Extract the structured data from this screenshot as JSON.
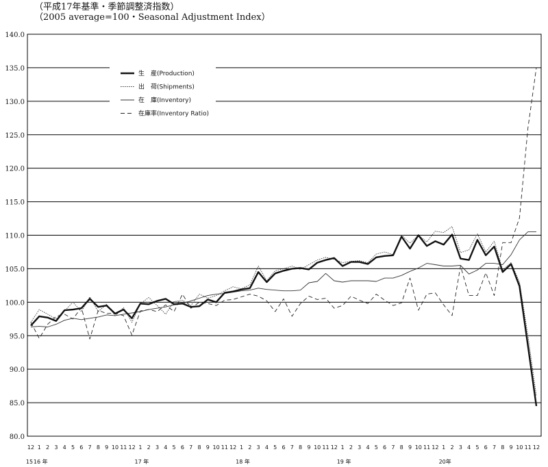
{
  "header": {
    "title_jp": "（平成17年基準・季節調整済指数）",
    "title_en": "（2005 average=100・Seasonal Adjustment Index）"
  },
  "chart_data": {
    "type": "line",
    "title": "（平成17年基準・季節調整済指数）",
    "subtitle": "（2005 average=100・Seasonal Adjustment Index）",
    "xlabel": "",
    "ylabel": "",
    "ylim": [
      80,
      140
    ],
    "y_ticks": [
      "80.0",
      "85.0",
      "90.0",
      "95.0",
      "100.0",
      "105.0",
      "110.0",
      "115.0",
      "120.0",
      "125.0",
      "130.0",
      "135.0",
      "140.0"
    ],
    "grid": true,
    "legend_position": "top-left",
    "x_month_labels": [
      "12",
      "1",
      "2",
      "3",
      "4",
      "5",
      "6",
      "7",
      "8",
      "9",
      "10",
      "11",
      "12",
      "1",
      "2",
      "3",
      "4",
      "5",
      "6",
      "7",
      "8",
      "9",
      "10",
      "11",
      "12",
      "1",
      "2",
      "3",
      "4",
      "5",
      "6",
      "7",
      "8",
      "9",
      "10",
      "11",
      "12",
      "1",
      "2",
      "3",
      "4",
      "5",
      "6",
      "7",
      "8",
      "9",
      "10",
      "11",
      "12",
      "1",
      "2",
      "3",
      "4",
      "5",
      "6",
      "7",
      "8",
      "9",
      "10",
      "11",
      "12"
    ],
    "x_year_labels": [
      {
        "index": 0,
        "text": "15"
      },
      {
        "index": 1,
        "text": "16 年"
      },
      {
        "index": 13,
        "text": "17 年"
      },
      {
        "index": 25,
        "text": "18 年"
      },
      {
        "index": 37,
        "text": "19 年"
      },
      {
        "index": 49,
        "text": "20年"
      }
    ],
    "series": [
      {
        "name": "生　産(Production)",
        "style": "solid-thick",
        "values": [
          96.5,
          97.9,
          97.7,
          97.2,
          98.8,
          98.9,
          99.1,
          100.5,
          99.3,
          99.5,
          98.3,
          98.9,
          97.6,
          99.8,
          99.7,
          100.2,
          100.5,
          99.7,
          99.8,
          99.3,
          99.4,
          100.4,
          100.0,
          101.4,
          101.6,
          101.9,
          102.1,
          104.5,
          103.0,
          104.3,
          104.7,
          105.0,
          105.1,
          104.9,
          105.9,
          106.3,
          106.6,
          105.4,
          106.0,
          106.0,
          105.7,
          106.7,
          106.9,
          107.0,
          109.8,
          108.0,
          110.0,
          108.4,
          109.1,
          108.6,
          110.1,
          106.5,
          106.3,
          109.3,
          107.0,
          108.3,
          104.5,
          105.7,
          102.4,
          93.5,
          84.5
        ]
      },
      {
        "name": "出　荷(Shipments)",
        "style": "dotted",
        "values": [
          97.0,
          98.9,
          98.2,
          97.5,
          98.7,
          100.0,
          98.6,
          100.8,
          98.6,
          99.7,
          98.0,
          99.2,
          97.0,
          99.8,
          100.7,
          99.5,
          98.2,
          100.1,
          100.3,
          99.5,
          101.2,
          100.6,
          101.0,
          101.7,
          102.3,
          102.0,
          102.6,
          105.4,
          103.2,
          104.7,
          105.0,
          105.4,
          104.9,
          105.6,
          106.3,
          106.7,
          106.4,
          105.9,
          106.1,
          106.2,
          105.9,
          107.2,
          107.5,
          107.1,
          110.0,
          108.8,
          110.0,
          109.0,
          110.6,
          110.4,
          111.3,
          107.4,
          107.8,
          110.2,
          107.5,
          109.1,
          104.8,
          105.9,
          103.0,
          95.0,
          86.0
        ]
      },
      {
        "name": "在　庫(Inventory)",
        "style": "solid-thin",
        "values": [
          96.3,
          96.4,
          96.3,
          96.7,
          97.3,
          97.6,
          97.4,
          97.6,
          97.8,
          98.1,
          98.0,
          98.2,
          98.4,
          98.6,
          98.9,
          99.1,
          99.3,
          99.6,
          99.8,
          100.2,
          100.6,
          101.0,
          101.2,
          101.3,
          101.5,
          101.7,
          101.8,
          102.1,
          101.9,
          101.8,
          101.7,
          101.7,
          101.8,
          102.9,
          103.1,
          104.3,
          103.2,
          103.0,
          103.2,
          103.2,
          103.2,
          103.1,
          103.6,
          103.6,
          104.0,
          104.6,
          105.1,
          105.8,
          105.6,
          105.4,
          105.4,
          105.5,
          104.2,
          104.8,
          105.8,
          105.8,
          105.6,
          107.1,
          109.3,
          110.5,
          110.5
        ]
      },
      {
        "name": "在庫率(Inventory Ratio)",
        "style": "dashed",
        "values": [
          97.0,
          94.6,
          96.7,
          97.9,
          98.2,
          97.5,
          99.2,
          94.5,
          98.8,
          98.3,
          98.4,
          98.0,
          95.1,
          98.7,
          98.9,
          98.6,
          99.6,
          98.6,
          101.2,
          99.1,
          100.0,
          99.8,
          99.5,
          100.3,
          100.4,
          100.8,
          101.2,
          100.9,
          100.2,
          98.6,
          100.5,
          97.9,
          99.8,
          100.9,
          100.4,
          100.6,
          99.1,
          99.5,
          100.9,
          100.3,
          99.8,
          101.2,
          100.3,
          99.5,
          99.9,
          103.6,
          98.8,
          101.2,
          101.4,
          99.6,
          98.0,
          105.4,
          101.0,
          101.0,
          104.4,
          101.0,
          108.9,
          108.9,
          112.6,
          126.0,
          135.0
        ]
      }
    ]
  }
}
